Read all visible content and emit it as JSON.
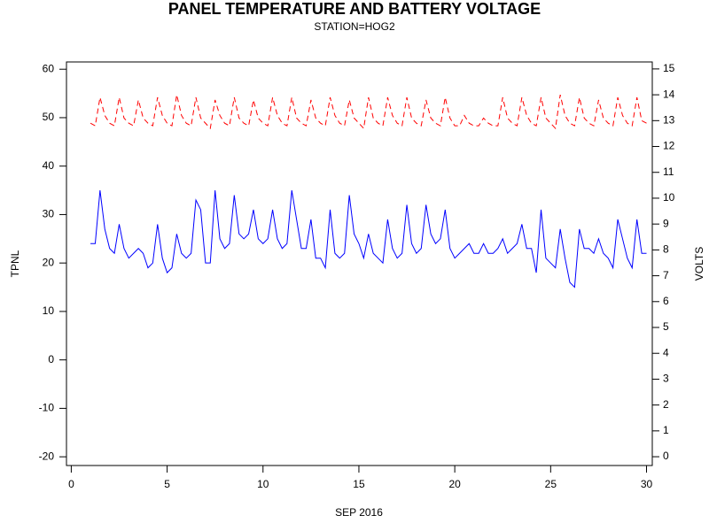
{
  "chart_data": {
    "type": "line",
    "title": "PANEL TEMPERATURE AND BATTERY VOLTAGE",
    "subtitle": "STATION=HOG2",
    "xlabel": "SEP 2016",
    "ylabel": "TPNL",
    "y2label": "VOLTS",
    "xlim": [
      -0.25,
      30.3
    ],
    "xticks": [
      0,
      5,
      10,
      15,
      20,
      25,
      30
    ],
    "ylim": [
      -21.8,
      61.5
    ],
    "yticks": [
      -20,
      -10,
      0,
      10,
      20,
      30,
      40,
      50,
      60
    ],
    "y2lim": [
      -0.34,
      15.27
    ],
    "y2ticks": [
      0,
      1,
      2,
      3,
      4,
      5,
      6,
      7,
      8,
      9,
      10,
      11,
      12,
      13,
      14,
      15
    ],
    "x": [
      1,
      1.25,
      1.5,
      1.75,
      2,
      2.25,
      2.5,
      2.75,
      3,
      3.25,
      3.5,
      3.75,
      4,
      4.25,
      4.5,
      4.75,
      5,
      5.25,
      5.5,
      5.75,
      6,
      6.25,
      6.5,
      6.75,
      7,
      7.25,
      7.5,
      7.75,
      8,
      8.25,
      8.5,
      8.75,
      9,
      9.25,
      9.5,
      9.75,
      10,
      10.25,
      10.5,
      10.75,
      11,
      11.25,
      11.5,
      11.75,
      12,
      12.25,
      12.5,
      12.75,
      13,
      13.25,
      13.5,
      13.75,
      14,
      14.25,
      14.5,
      14.75,
      15,
      15.25,
      15.5,
      15.75,
      16,
      16.25,
      16.5,
      16.75,
      17,
      17.25,
      17.5,
      17.75,
      18,
      18.25,
      18.5,
      18.75,
      19,
      19.25,
      19.5,
      19.75,
      20,
      20.25,
      20.5,
      20.75,
      21,
      21.25,
      21.5,
      21.75,
      22,
      22.25,
      22.5,
      22.75,
      23,
      23.25,
      23.5,
      23.75,
      24,
      24.25,
      24.5,
      24.75,
      25,
      25.25,
      25.5,
      25.75,
      26,
      26.25,
      26.5,
      26.75,
      27,
      27.25,
      27.5,
      27.75,
      28,
      28.25,
      28.5,
      28.75,
      29,
      29.25,
      29.5,
      29.75,
      30
    ],
    "series": [
      {
        "name": "TPNL",
        "color": "#0000ff",
        "dash": false,
        "values": [
          24,
          24,
          35,
          27,
          23,
          22,
          28,
          23,
          21,
          22,
          23,
          22,
          19,
          20,
          28,
          21,
          18,
          19,
          26,
          22,
          21,
          22,
          33,
          31,
          20,
          20,
          35,
          25,
          23,
          24,
          34,
          26,
          25,
          26,
          31,
          25,
          24,
          25,
          31,
          25,
          23,
          24,
          35,
          29,
          23,
          23,
          29,
          21,
          21,
          19,
          31,
          22,
          21,
          22,
          34,
          26,
          24,
          21,
          26,
          22,
          21,
          20,
          29,
          23,
          21,
          22,
          32,
          24,
          22,
          23,
          32,
          26,
          24,
          25,
          31,
          23,
          21,
          22,
          23,
          24,
          22,
          22,
          24,
          22,
          22,
          23,
          25,
          22,
          23,
          24,
          28,
          23,
          23,
          18,
          31,
          21,
          20,
          19,
          27,
          21,
          16,
          15,
          27,
          23,
          23,
          22,
          25,
          22,
          21,
          19,
          29,
          25,
          21,
          19,
          29,
          22,
          22
        ]
      },
      {
        "name": "VOLTS",
        "color": "#ff0000",
        "dash": true,
        "axis": "y2",
        "values": [
          12.9,
          12.8,
          13.9,
          13.2,
          12.9,
          12.8,
          13.9,
          13.1,
          12.9,
          12.8,
          13.8,
          13.1,
          12.9,
          12.8,
          13.9,
          13.2,
          12.9,
          12.8,
          14.0,
          13.2,
          12.9,
          12.8,
          13.9,
          13.1,
          12.9,
          12.7,
          13.8,
          13.2,
          12.9,
          12.8,
          13.9,
          13.1,
          12.9,
          12.8,
          13.8,
          13.1,
          12.9,
          12.8,
          13.9,
          13.2,
          12.9,
          12.8,
          13.9,
          13.1,
          12.9,
          12.8,
          13.8,
          13.1,
          12.9,
          12.8,
          13.9,
          13.2,
          12.9,
          12.8,
          13.8,
          13.1,
          12.9,
          12.7,
          13.9,
          13.1,
          12.9,
          12.8,
          13.9,
          13.2,
          12.9,
          12.8,
          13.9,
          13.1,
          12.9,
          12.8,
          13.8,
          13.1,
          12.9,
          12.8,
          13.9,
          13.1,
          12.8,
          12.8,
          13.2,
          12.9,
          12.8,
          12.8,
          13.1,
          12.9,
          12.8,
          12.8,
          13.9,
          13.1,
          12.9,
          12.8,
          13.9,
          13.2,
          12.9,
          12.8,
          13.9,
          13.1,
          12.9,
          12.7,
          14.0,
          13.2,
          12.9,
          12.8,
          13.9,
          13.1,
          12.9,
          12.8,
          13.8,
          13.1,
          12.9,
          12.8,
          13.9,
          13.2,
          12.9,
          12.8,
          13.9,
          13.0,
          12.9
        ]
      }
    ]
  }
}
